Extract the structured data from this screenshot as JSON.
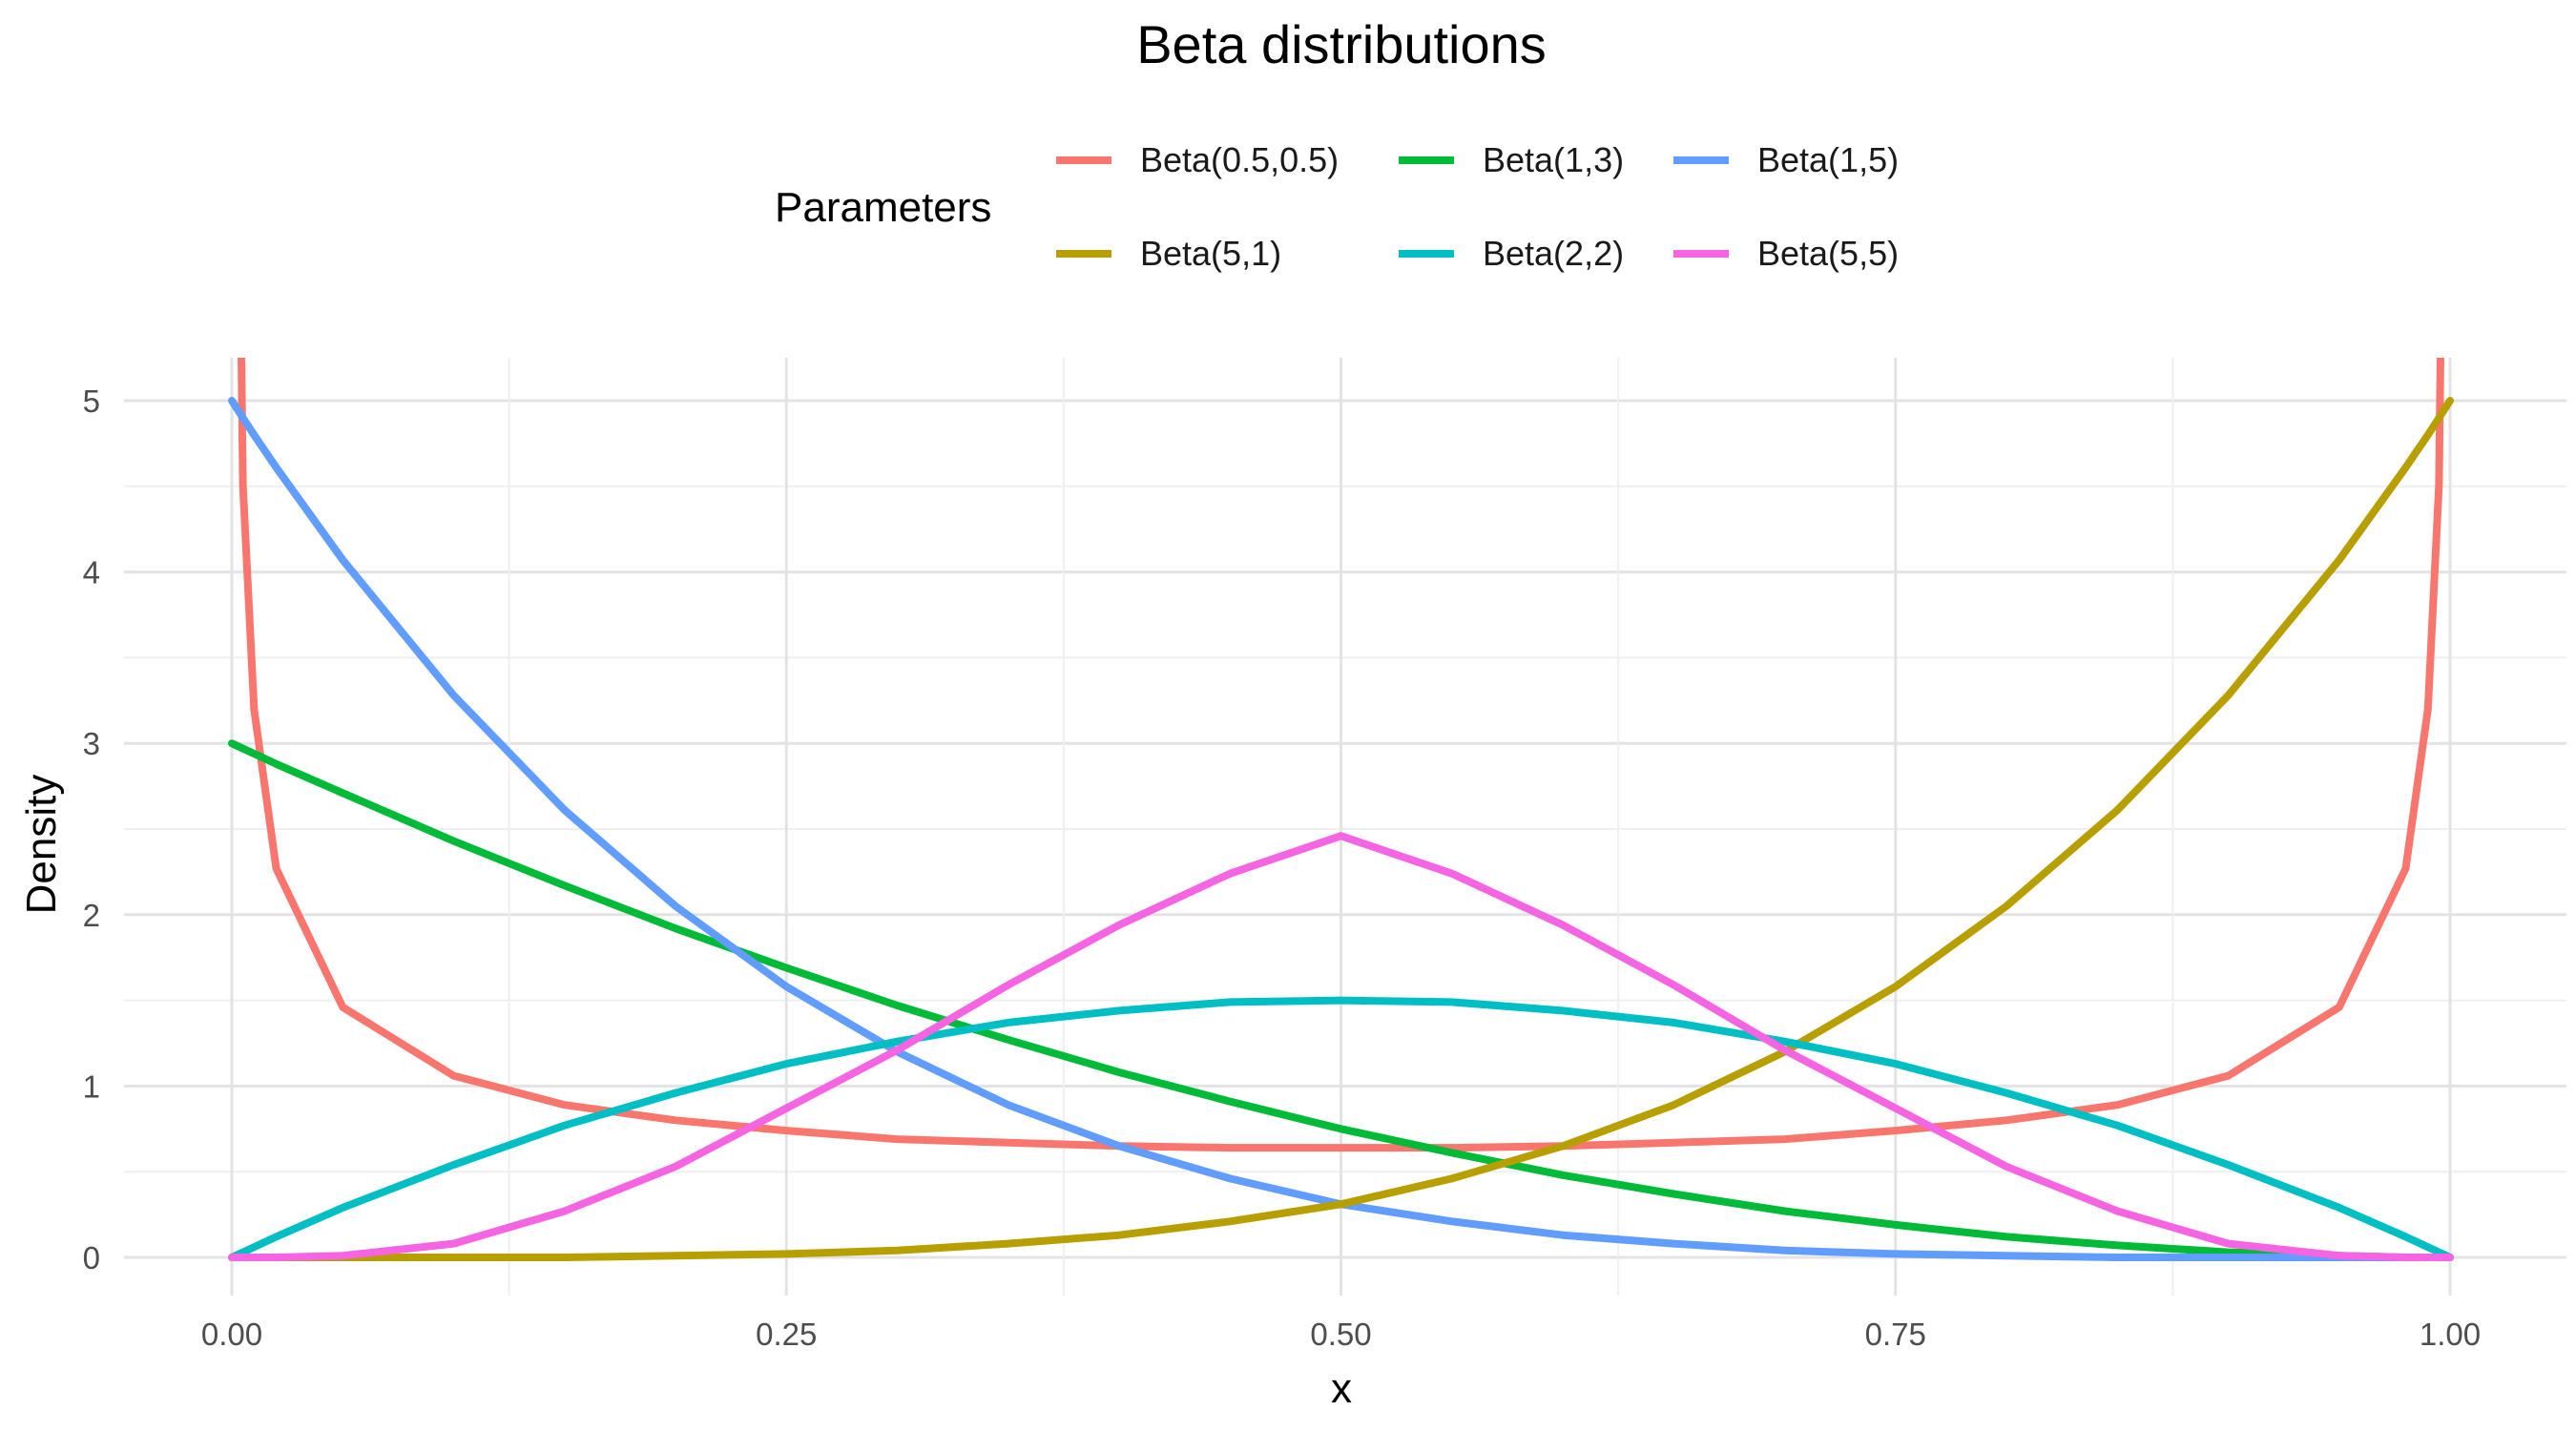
{
  "chart_data": {
    "type": "line",
    "title": "Beta distributions",
    "xlabel": "x",
    "ylabel": "Density",
    "xlim": [
      0,
      1
    ],
    "ylim": [
      0,
      5
    ],
    "x_ticks": [
      0,
      0.25,
      0.5,
      0.75,
      1
    ],
    "x_tick_labels": [
      "0.00",
      "0.25",
      "0.50",
      "0.75",
      "1.00"
    ],
    "y_ticks": [
      0,
      1,
      2,
      3,
      4,
      5
    ],
    "y_tick_labels": [
      "0",
      "1",
      "2",
      "3",
      "4",
      "5"
    ],
    "grid": true,
    "legend": {
      "title": "Parameters",
      "placement": "top",
      "rows": [
        [
          "Beta(0.5,0.5)",
          "Beta(1,3)",
          "Beta(1,5)"
        ],
        [
          "Beta(5,1)",
          "Beta(2,2)",
          "Beta(5,5)"
        ]
      ]
    },
    "x": [
      0,
      0.005,
      0.01,
      0.02,
      0.05,
      0.1,
      0.15,
      0.2,
      0.25,
      0.3,
      0.35,
      0.4,
      0.45,
      0.5,
      0.55,
      0.6,
      0.65,
      0.7,
      0.75,
      0.8,
      0.85,
      0.9,
      0.95,
      0.98,
      0.99,
      0.995,
      1
    ],
    "series": [
      {
        "name": "Beta(0.5,0.5)",
        "color": "#F8766D",
        "values": [
          null,
          4.51,
          3.2,
          2.27,
          1.46,
          1.06,
          0.89,
          0.8,
          0.74,
          0.69,
          0.67,
          0.65,
          0.64,
          0.64,
          0.64,
          0.65,
          0.67,
          0.69,
          0.74,
          0.8,
          0.89,
          1.06,
          1.46,
          2.27,
          3.2,
          4.51,
          null
        ]
      },
      {
        "name": "Beta(1,3)",
        "color": "#00BA38",
        "values": [
          3,
          2.97,
          2.94,
          2.88,
          2.71,
          2.43,
          2.17,
          1.92,
          1.69,
          1.47,
          1.27,
          1.08,
          0.91,
          0.75,
          0.61,
          0.48,
          0.37,
          0.27,
          0.19,
          0.12,
          0.07,
          0.03,
          0.01,
          0,
          0,
          0,
          0
        ]
      },
      {
        "name": "Beta(1,5)",
        "color": "#619CFF",
        "values": [
          5,
          4.9,
          4.8,
          4.61,
          4.07,
          3.28,
          2.61,
          2.05,
          1.58,
          1.2,
          0.89,
          0.65,
          0.46,
          0.31,
          0.21,
          0.13,
          0.08,
          0.04,
          0.02,
          0.01,
          0,
          0,
          0,
          0,
          0,
          0,
          0
        ]
      },
      {
        "name": "Beta(5,1)",
        "color": "#B79F00",
        "values": [
          0,
          0,
          0,
          0,
          0,
          0,
          0,
          0.01,
          0.02,
          0.04,
          0.08,
          0.13,
          0.21,
          0.31,
          0.46,
          0.65,
          0.89,
          1.2,
          1.58,
          2.05,
          2.61,
          3.28,
          4.07,
          4.61,
          4.8,
          4.9,
          5
        ]
      },
      {
        "name": "Beta(2,2)",
        "color": "#00BFC4",
        "values": [
          0,
          0.03,
          0.06,
          0.12,
          0.29,
          0.54,
          0.77,
          0.96,
          1.13,
          1.26,
          1.37,
          1.44,
          1.49,
          1.5,
          1.49,
          1.44,
          1.37,
          1.26,
          1.13,
          0.96,
          0.77,
          0.54,
          0.29,
          0.12,
          0.06,
          0.03,
          0
        ]
      },
      {
        "name": "Beta(5,5)",
        "color": "#F564E3",
        "values": [
          0,
          0,
          0,
          0,
          0.01,
          0.08,
          0.27,
          0.53,
          0.87,
          1.21,
          1.59,
          1.94,
          2.24,
          2.46,
          2.24,
          1.94,
          1.59,
          1.21,
          0.87,
          0.53,
          0.27,
          0.08,
          0.01,
          0,
          0,
          0,
          0
        ]
      }
    ]
  }
}
